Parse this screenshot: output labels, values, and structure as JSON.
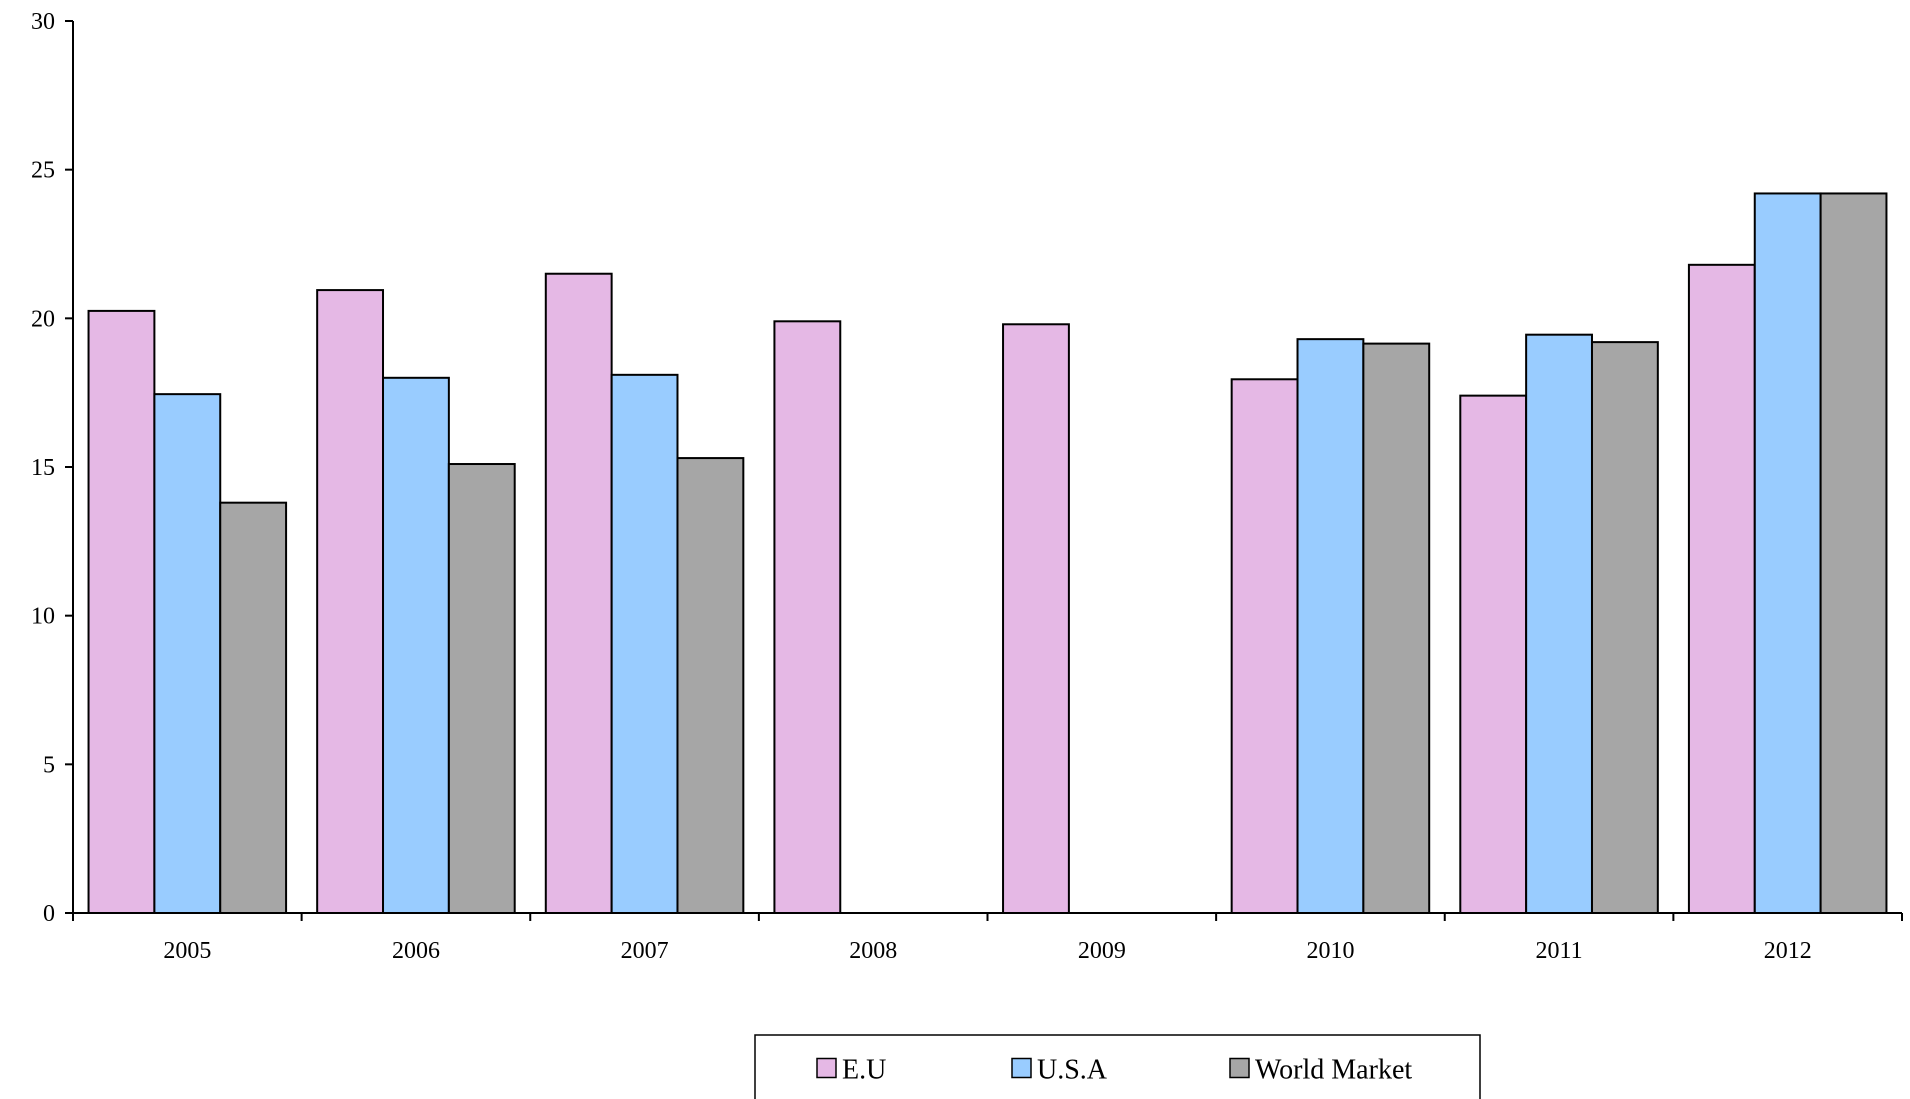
{
  "chart_data": {
    "type": "bar",
    "categories": [
      "2005",
      "2006",
      "2007",
      "2008",
      "2009",
      "2010",
      "2011",
      "2012"
    ],
    "series": [
      {
        "name": "E.U",
        "color": "#e5b8e5",
        "values": [
          20.25,
          20.95,
          21.5,
          19.9,
          19.8,
          17.95,
          17.4,
          21.8
        ]
      },
      {
        "name": "U.S.A",
        "color": "#99ccff",
        "values": [
          17.45,
          18.0,
          18.1,
          null,
          null,
          19.3,
          19.45,
          24.2
        ]
      },
      {
        "name": "World Market",
        "color": "#a6a6a6",
        "values": [
          13.8,
          15.1,
          15.3,
          null,
          null,
          19.15,
          19.2,
          24.2
        ]
      }
    ],
    "y_ticks": [
      "0",
      "5",
      "10",
      "15",
      "20",
      "25",
      "30"
    ],
    "ylim": [
      0,
      30
    ],
    "grid": false,
    "legend_position": "bottom-center"
  }
}
